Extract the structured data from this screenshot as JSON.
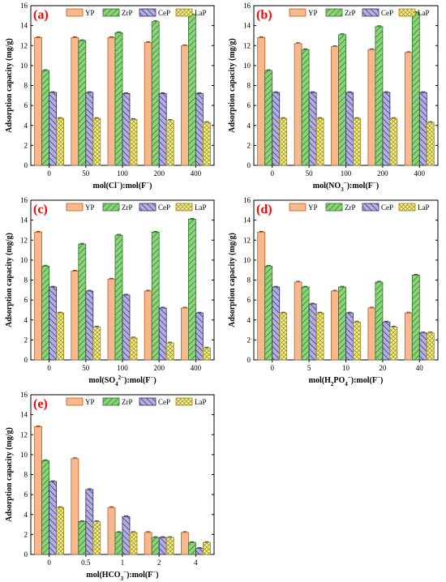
{
  "colors": {
    "YP": "#f6b98f",
    "ZrP": "#8fd27c",
    "CeP": "#b5aee0",
    "LaP": "#f5f19a",
    "YP_stroke": "#c75a1a",
    "ZrP_stroke": "#1f7a1f",
    "CeP_stroke": "#2d2d6a",
    "LaP_stroke": "#9a8a10",
    "panel_label": "#ff0000"
  },
  "chart_data": [
    {
      "type": "bar",
      "panel": "(a)",
      "xlabel": "mol(Cl−):mol(F−)",
      "ylabel": "Adsorption capacity (mg/g)",
      "ylim": [
        0,
        16
      ],
      "yticks": [
        0,
        2,
        4,
        6,
        8,
        10,
        12,
        14,
        16
      ],
      "categories": [
        "0",
        "50",
        "100",
        "200",
        "400"
      ],
      "legend": [
        "YP",
        "ZrP",
        "CeP",
        "LaP"
      ],
      "series": [
        {
          "name": "YP",
          "values": [
            12.8,
            12.8,
            12.8,
            12.3,
            12.0
          ]
        },
        {
          "name": "ZrP",
          "values": [
            9.5,
            12.5,
            13.3,
            14.4,
            15.1
          ]
        },
        {
          "name": "CeP",
          "values": [
            7.3,
            7.3,
            7.2,
            7.2,
            7.2
          ]
        },
        {
          "name": "LaP",
          "values": [
            4.7,
            4.7,
            4.6,
            4.5,
            4.3
          ]
        }
      ]
    },
    {
      "type": "bar",
      "panel": "(b)",
      "xlabel": "mol(NO₃−):mol(F−)",
      "ylabel": "Adsorption capacity (mg/g)",
      "ylim": [
        0,
        16
      ],
      "yticks": [
        0,
        2,
        4,
        6,
        8,
        10,
        12,
        14,
        16
      ],
      "categories": [
        "0",
        "50",
        "100",
        "200",
        "400"
      ],
      "legend": [
        "YP",
        "ZrP",
        "CeP",
        "LaP"
      ],
      "series": [
        {
          "name": "YP",
          "values": [
            12.8,
            12.2,
            11.9,
            11.6,
            11.3
          ]
        },
        {
          "name": "ZrP",
          "values": [
            9.5,
            11.6,
            13.1,
            13.9,
            15.3
          ]
        },
        {
          "name": "CeP",
          "values": [
            7.3,
            7.3,
            7.3,
            7.3,
            7.3
          ]
        },
        {
          "name": "LaP",
          "values": [
            4.7,
            4.7,
            4.7,
            4.7,
            4.3
          ]
        }
      ]
    },
    {
      "type": "bar",
      "panel": "(c)",
      "xlabel": "mol(SO₄²−):mol(F−)",
      "ylabel": "Adsorption capacity (mg/g)",
      "ylim": [
        0,
        16
      ],
      "yticks": [
        0,
        2,
        4,
        6,
        8,
        10,
        12,
        14,
        16
      ],
      "categories": [
        "0",
        "50",
        "100",
        "200",
        "400"
      ],
      "legend": [
        "YP",
        "ZrP",
        "CeP",
        "LaP"
      ],
      "series": [
        {
          "name": "YP",
          "values": [
            12.8,
            8.9,
            8.1,
            6.9,
            5.2
          ]
        },
        {
          "name": "ZrP",
          "values": [
            9.4,
            11.6,
            12.5,
            12.8,
            14.1
          ]
        },
        {
          "name": "CeP",
          "values": [
            7.3,
            6.9,
            6.5,
            5.2,
            4.7
          ]
        },
        {
          "name": "LaP",
          "values": [
            4.7,
            3.3,
            2.2,
            1.7,
            1.2
          ]
        }
      ]
    },
    {
      "type": "bar",
      "panel": "(d)",
      "xlabel": "mol(H₂PO₄−):mol(F−)",
      "ylabel": "Adsorption capacity (mg/g)",
      "ylim": [
        0,
        16
      ],
      "yticks": [
        0,
        2,
        4,
        6,
        8,
        10,
        12,
        14,
        16
      ],
      "categories": [
        "0",
        "5",
        "10",
        "20",
        "40"
      ],
      "legend": [
        "YP",
        "ZrP",
        "CeP",
        "LaP"
      ],
      "series": [
        {
          "name": "YP",
          "values": [
            12.8,
            7.8,
            6.9,
            5.2,
            4.7
          ]
        },
        {
          "name": "ZrP",
          "values": [
            9.4,
            7.3,
            7.3,
            7.8,
            8.5
          ]
        },
        {
          "name": "CeP",
          "values": [
            7.3,
            5.6,
            4.7,
            3.8,
            2.7
          ]
        },
        {
          "name": "LaP",
          "values": [
            4.7,
            4.7,
            3.8,
            3.3,
            2.7
          ]
        }
      ]
    },
    {
      "type": "bar",
      "panel": "(e)",
      "xlabel": "mol(HCO₃−):mol(F−)",
      "ylabel": "Adsorption capacity (mg/g)",
      "ylim": [
        0,
        16
      ],
      "yticks": [
        0,
        2,
        4,
        6,
        8,
        10,
        12,
        14,
        16
      ],
      "categories": [
        "0",
        "0.5",
        "1",
        "2",
        "4"
      ],
      "legend": [
        "YP",
        "ZrP",
        "CeP",
        "LaP"
      ],
      "series": [
        {
          "name": "YP",
          "values": [
            12.8,
            9.6,
            4.7,
            2.2,
            2.2
          ]
        },
        {
          "name": "ZrP",
          "values": [
            9.4,
            3.3,
            2.2,
            1.7,
            1.2
          ]
        },
        {
          "name": "CeP",
          "values": [
            7.3,
            6.5,
            3.8,
            1.7,
            0.6
          ]
        },
        {
          "name": "LaP",
          "values": [
            4.7,
            3.3,
            2.2,
            1.7,
            1.2
          ]
        }
      ]
    }
  ]
}
